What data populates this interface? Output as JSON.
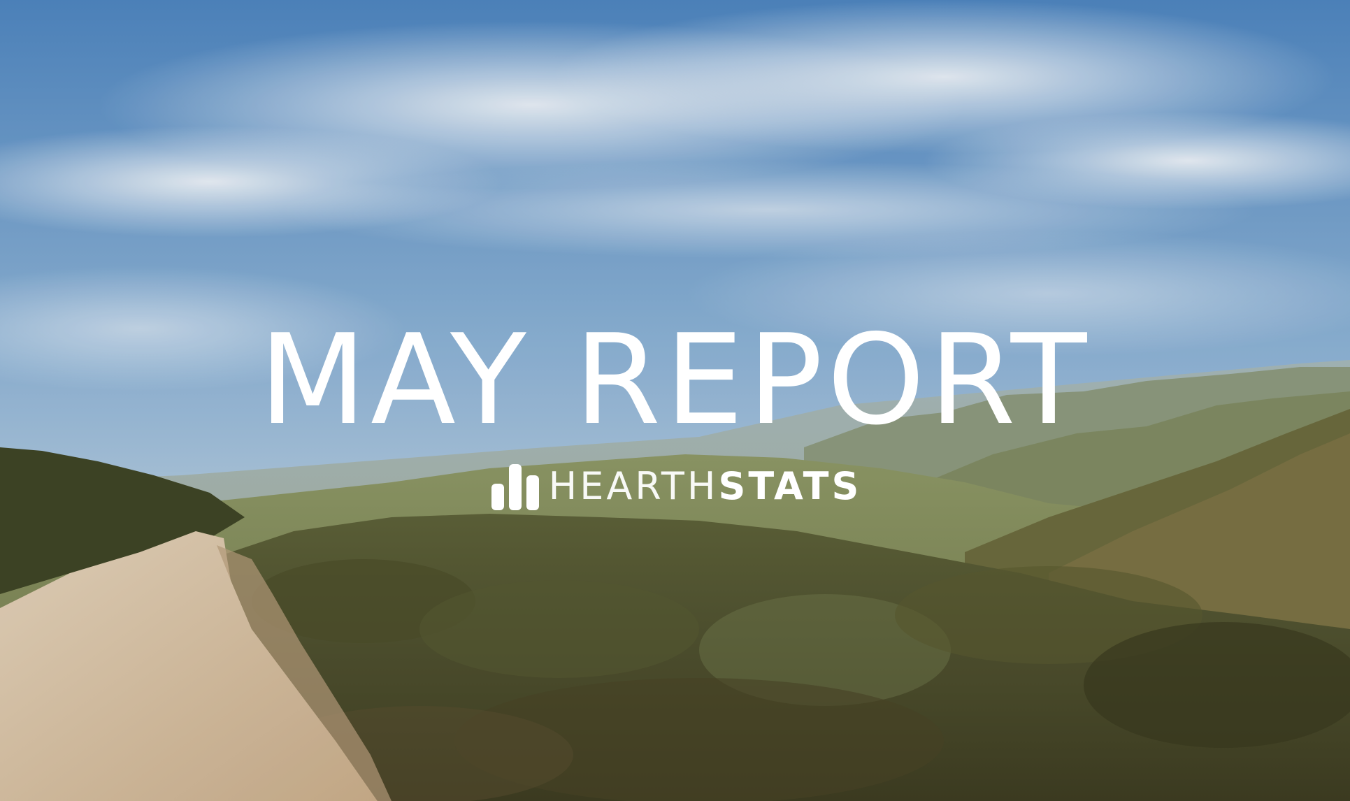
{
  "title": "MAY REPORT",
  "brand": {
    "name_light": "HEARTH",
    "name_bold": "STATS",
    "logo_icon": "bar-chart-logo-icon"
  },
  "colors": {
    "text": "#ffffff",
    "sky_top": "#4f86c0",
    "sky_bottom": "#b9cfe0",
    "hills": "#8a9a6a",
    "brush": "#4f5230",
    "trail": "#d8c3a6"
  }
}
